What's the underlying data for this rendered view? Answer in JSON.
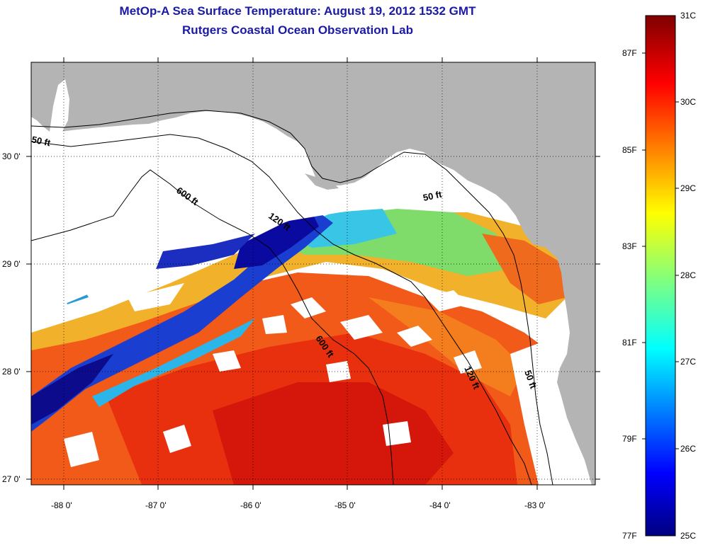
{
  "title": "MetOp-A Sea Surface Temperature:  August 19, 2012 1532 GMT",
  "subtitle": "Rutgers Coastal Ocean Observation Lab",
  "map": {
    "lon_ticks": [
      "-88 0'",
      "-87 0'",
      "-86 0'",
      "-85 0'",
      "-84 0'",
      "-83 0'"
    ],
    "lat_ticks": [
      "30 0'",
      "29 0'",
      "28 0'",
      "27 0'"
    ],
    "isobath_labels": {
      "iso50_west": "50 ft",
      "iso600_north": "600 ft",
      "iso120_north": "120 ft",
      "iso50_east": "50 ft",
      "iso600_south": "600 ft",
      "iso120_south": "120 ft",
      "iso50_south": "50 ft"
    },
    "colors": {
      "land": "#b4b4b4",
      "no_data": "#ffffff",
      "grid": "#000000"
    }
  },
  "colorbar": {
    "celsius_ticks": [
      "31C",
      "30C",
      "29C",
      "28C",
      "27C",
      "26C",
      "25C"
    ],
    "fahrenheit_ticks": [
      "87F",
      "85F",
      "83F",
      "81F",
      "79F",
      "77F"
    ],
    "range_c": [
      25,
      31
    ],
    "colormap": "jet"
  }
}
